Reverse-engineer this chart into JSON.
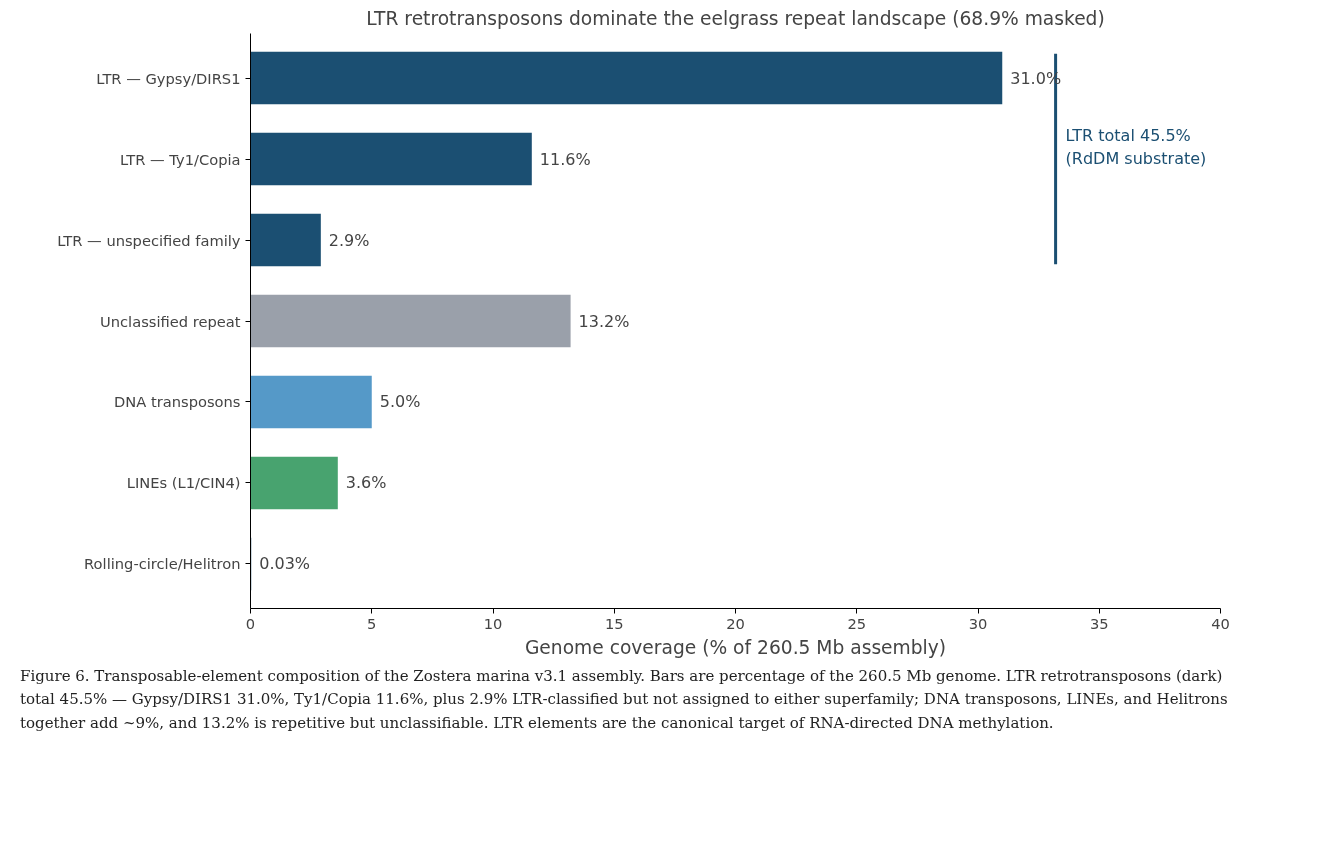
{
  "chart_data": {
    "type": "bar",
    "orientation": "horizontal",
    "title": "LTR retrotransposons dominate the eelgrass repeat landscape (68.9% masked)",
    "xlabel": "Genome coverage (% of 260.5 Mb assembly)",
    "categories": [
      "LTR — Gypsy/DIRS1",
      "LTR — Ty1/Copia",
      "LTR — unspecified family",
      "Unclassified repeat",
      "DNA transposons",
      "LINEs (L1/CIN4)",
      "Rolling-circle/Helitron"
    ],
    "values": [
      31.0,
      11.6,
      2.9,
      13.2,
      5.0,
      3.6,
      0.03
    ],
    "colors": [
      "#1b4f72",
      "#1b4f72",
      "#1b4f72",
      "#9aa0aa",
      "#5599c8",
      "#48a36f",
      "#1b4f72"
    ],
    "value_labels": [
      "31.0%",
      "11.6%",
      "2.9%",
      "13.2%",
      "5.0%",
      "3.6%",
      "0.03%"
    ],
    "xlim": [
      0,
      40
    ],
    "xticks": [
      0,
      5,
      10,
      15,
      20,
      25,
      30,
      35,
      40
    ],
    "grid": false,
    "annotations": [
      "LTR total 45.5%\n(RdDM substrate)",
      "Figure 6. Transposable-element composition of the Zostera marina v3.1 assembly. Bars are percentage of the 260.5 Mb genome. LTR retrotransposons (dark) total 45.5% — Gypsy/DIRS1 31.0%, Ty1/Copia 11.6%, plus 2.9% LTR-classified but not assigned to either superfamily; DNA transposons, LINEs, and Helitrons together add ~9%, and 13.2% is repetitive but unclassifiable. LTR elements are the canonical target of RNA-directed DNA methylation."
    ]
  }
}
